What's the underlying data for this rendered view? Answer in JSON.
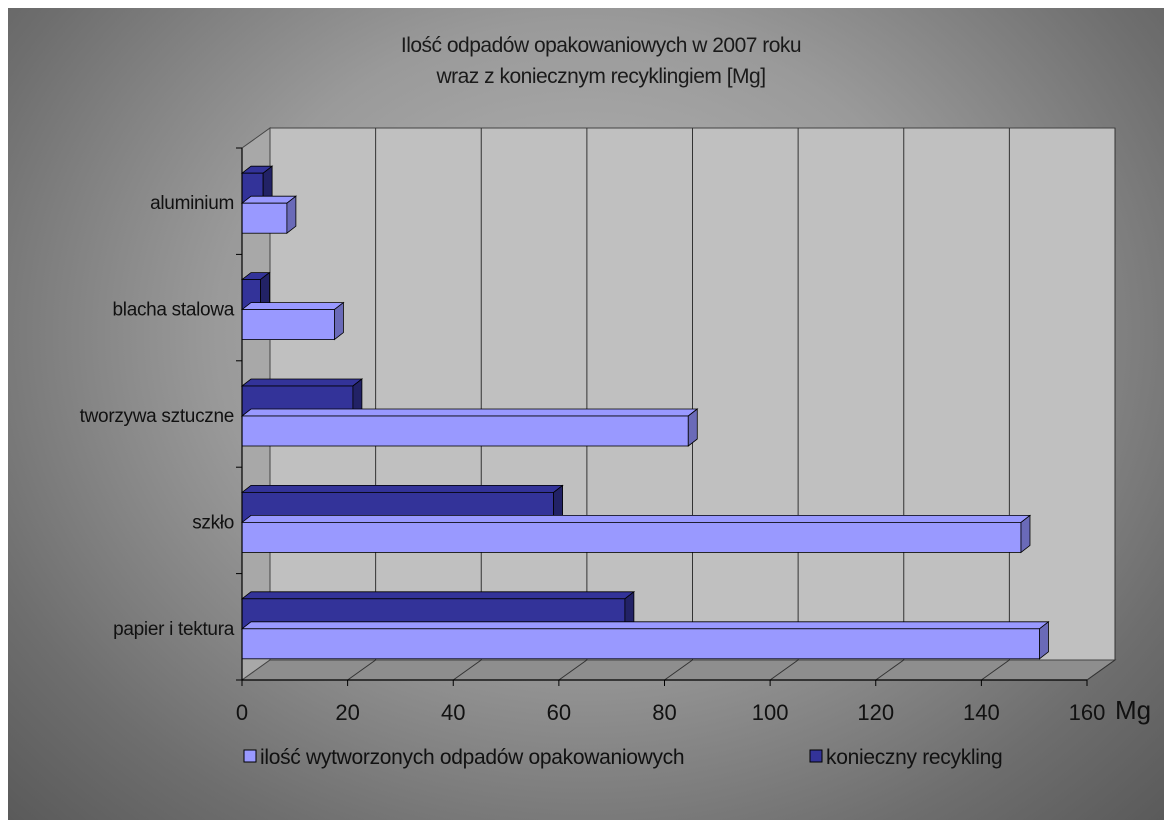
{
  "chart_data": {
    "type": "bar",
    "orientation": "horizontal",
    "three_d": true,
    "title": [
      "Ilość odpadów opakowaniowych w 2007 roku",
      "wraz z koniecznym recyklingiem [Mg]"
    ],
    "categories": [
      "papier i tektura",
      "szkło",
      "tworzywa sztuczne",
      "blacha stalowa",
      "aluminium"
    ],
    "series": [
      {
        "name": "ilość wytworzonych odpadów opakowaniowych",
        "color": "#9999ff",
        "values": [
          151,
          147.5,
          84.5,
          17.5,
          8.5
        ]
      },
      {
        "name": "konieczny recykling",
        "color": "#333399",
        "values": [
          72.5,
          59,
          21,
          3.5,
          4
        ]
      }
    ],
    "xlim": [
      0,
      160
    ],
    "xticks": [
      "0",
      "20",
      "40",
      "60",
      "80",
      "100",
      "120",
      "140",
      "160"
    ],
    "xlabel": "Mg",
    "grid": true,
    "legend_position": "bottom"
  }
}
